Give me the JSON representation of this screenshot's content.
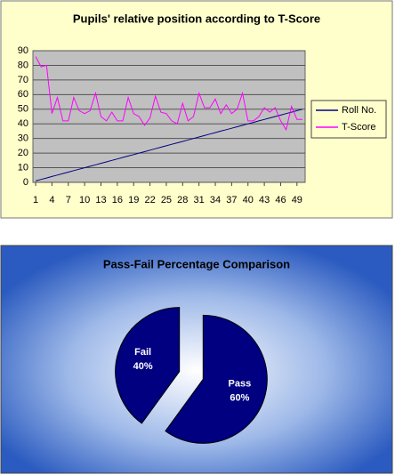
{
  "chart_data": [
    {
      "type": "line",
      "title": "Pupils' relative position according to T-Score",
      "x": [
        1,
        2,
        3,
        4,
        5,
        6,
        7,
        8,
        9,
        10,
        11,
        12,
        13,
        14,
        15,
        16,
        17,
        18,
        19,
        20,
        21,
        22,
        23,
        24,
        25,
        26,
        27,
        28,
        29,
        30,
        31,
        32,
        33,
        34,
        35,
        36,
        37,
        38,
        39,
        40,
        41,
        42,
        43,
        44,
        45,
        46,
        47,
        48,
        49,
        50
      ],
      "series": [
        {
          "name": "Roll No.",
          "color": "#000080",
          "values": [
            1,
            2,
            3,
            4,
            5,
            6,
            7,
            8,
            9,
            10,
            11,
            12,
            13,
            14,
            15,
            16,
            17,
            18,
            19,
            20,
            21,
            22,
            23,
            24,
            25,
            26,
            27,
            28,
            29,
            30,
            31,
            32,
            33,
            34,
            35,
            36,
            37,
            38,
            39,
            40,
            41,
            42,
            43,
            44,
            45,
            46,
            47,
            48,
            49,
            50
          ]
        },
        {
          "name": "T-Score",
          "color": "#ff00ff",
          "values": [
            86,
            79,
            80,
            47,
            58,
            42,
            42,
            58,
            49,
            47,
            49,
            61,
            45,
            42,
            48,
            42,
            42,
            58,
            47,
            45,
            39,
            44,
            59,
            48,
            47,
            42,
            40,
            54,
            42,
            45,
            61,
            51,
            51,
            57,
            47,
            53,
            47,
            50,
            61,
            42,
            42,
            45,
            51,
            48,
            51,
            42,
            36,
            52,
            43,
            43
          ]
        }
      ],
      "xlim": [
        0.5,
        50.5
      ],
      "xticks": [
        1,
        4,
        7,
        10,
        13,
        16,
        19,
        22,
        25,
        28,
        31,
        34,
        37,
        40,
        43,
        46,
        49
      ],
      "ylim": [
        0,
        90
      ],
      "yticks": [
        0,
        10,
        20,
        30,
        40,
        50,
        60,
        70,
        80,
        90
      ],
      "grid": true,
      "legend": "right"
    },
    {
      "type": "pie",
      "title": "Pass-Fail Percentage Comparison",
      "categories": [
        "Fail",
        "Pass"
      ],
      "values": [
        40,
        60
      ],
      "value_labels": [
        "40%",
        "60%"
      ],
      "color": "#000080"
    }
  ]
}
